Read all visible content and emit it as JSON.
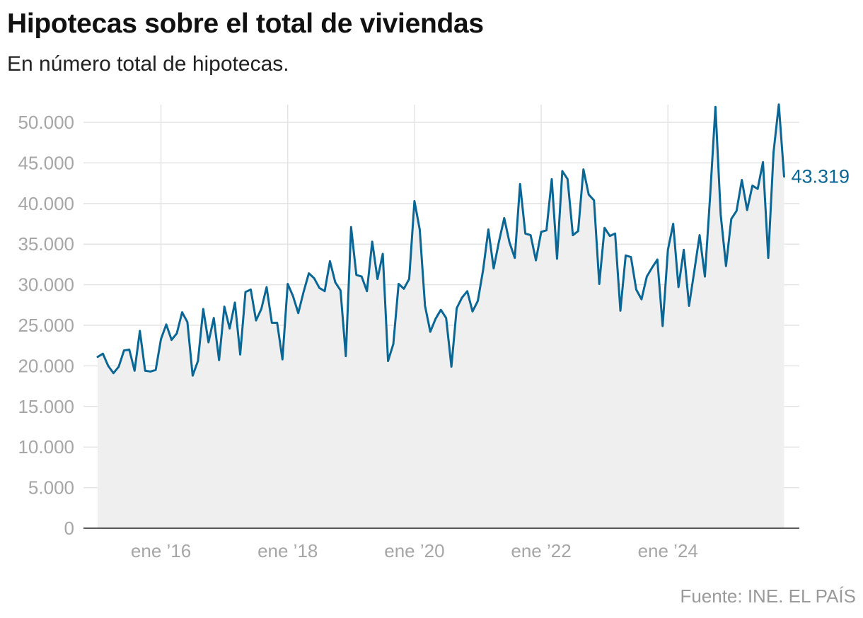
{
  "title": "Hipotecas sobre el total de viviendas",
  "subtitle": "En número total de hipotecas.",
  "source": "Fuente: INE. EL PAÍS",
  "colors": {
    "line": "#0a6694",
    "area": "#efefef",
    "grid": "#e4e4e4",
    "axis": "#222222"
  },
  "chart_data": {
    "type": "area",
    "title": "Hipotecas sobre el total de viviendas",
    "subtitle": "En número total de hipotecas.",
    "xlabel": "",
    "ylabel": "",
    "ylim": [
      0,
      52000
    ],
    "y_ticks": [
      0,
      5000,
      10000,
      15000,
      20000,
      25000,
      30000,
      35000,
      40000,
      45000,
      50000
    ],
    "y_tick_labels": [
      "0",
      "5.000",
      "10.000",
      "15.000",
      "20.000",
      "25.000",
      "30.000",
      "35.000",
      "40.000",
      "45.000",
      "50.000"
    ],
    "x_ticks": [
      "2016-01",
      "2018-01",
      "2020-01",
      "2022-01",
      "2024-01"
    ],
    "x_tick_labels": [
      "ene ’16",
      "ene ’18",
      "ene ’20",
      "ene ’22",
      "ene ’24"
    ],
    "grid": true,
    "last_value_label": "43.319",
    "series": [
      {
        "start": "2015-01",
        "frequency": "monthly",
        "values": [
          21100,
          21500,
          20000,
          19100,
          19900,
          21900,
          22000,
          19400,
          24300,
          19400,
          19300,
          19500,
          23300,
          25100,
          23200,
          24000,
          26600,
          25400,
          18800,
          20600,
          27000,
          22900,
          25900,
          20700,
          27300,
          24600,
          27800,
          21400,
          29100,
          29400,
          25600,
          27000,
          29700,
          25300,
          25300,
          20800,
          30100,
          28600,
          26500,
          29100,
          31400,
          30800,
          29600,
          29200,
          32900,
          30300,
          29300,
          21200,
          37100,
          31200,
          31000,
          29200,
          35300,
          30700,
          33800,
          20600,
          22700,
          30100,
          29500,
          30700,
          40300,
          36800,
          27400,
          24200,
          25800,
          26900,
          25900,
          19900,
          27100,
          28400,
          29200,
          26700,
          28000,
          31800,
          36800,
          32000,
          35300,
          38200,
          35200,
          33300,
          42400,
          36300,
          36100,
          33000,
          36500,
          36700,
          43000,
          33200,
          44000,
          43000,
          36100,
          36600,
          44200,
          41100,
          40400,
          30100,
          37000,
          36000,
          36300,
          26800,
          33600,
          33400,
          29400,
          28200,
          31000,
          32100,
          33100,
          24900,
          34300,
          37500,
          29700,
          34300,
          27400,
          31700,
          36100,
          31000,
          41000,
          51900,
          38600,
          32300,
          38100,
          39100,
          42900,
          39200,
          42200,
          41800,
          45100,
          33300,
          46300,
          52200,
          43319
        ]
      }
    ]
  }
}
